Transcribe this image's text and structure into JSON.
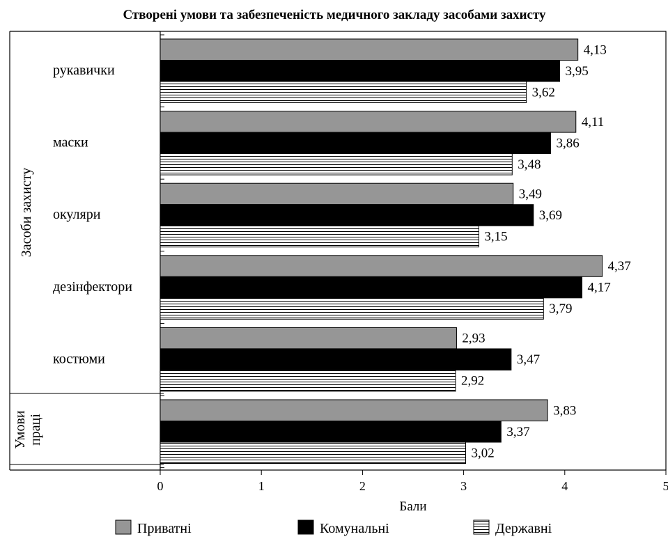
{
  "chart_data": {
    "type": "bar",
    "orientation": "horizontal",
    "title": "Створені умови та забезпеченість медичного закладу засобами захисту",
    "xlabel": "Бали",
    "xlim": [
      0,
      5
    ],
    "xticks": [
      0,
      1,
      2,
      3,
      4,
      5
    ],
    "grid": false,
    "legend_position": "bottom",
    "groups": [
      {
        "label": "Засоби захисту",
        "categories": [
          "рукавички",
          "маски",
          "окуляри",
          "дезінфектори",
          "костюми"
        ]
      },
      {
        "label": "Умови праці",
        "categories": [
          ""
        ]
      }
    ],
    "categories": [
      "рукавички",
      "маски",
      "окуляри",
      "дезінфектори",
      "костюми",
      ""
    ],
    "series": [
      {
        "name": "Приватні",
        "color": "#969696",
        "pattern": "solid",
        "values": [
          4.13,
          4.11,
          3.49,
          4.37,
          2.93,
          3.83
        ]
      },
      {
        "name": "Комунальні",
        "color": "#000000",
        "pattern": "solid",
        "values": [
          3.95,
          3.86,
          3.69,
          4.17,
          3.47,
          3.37
        ]
      },
      {
        "name": "Державні",
        "color": "#ffffff",
        "pattern": "horizontal-lines",
        "values": [
          3.62,
          3.48,
          3.15,
          3.79,
          2.92,
          3.02
        ]
      }
    ],
    "value_labels": [
      [
        "4,13",
        "4,11",
        "3,49",
        "4,37",
        "2,93",
        "3,83"
      ],
      [
        "3,95",
        "3,86",
        "3,69",
        "4,17",
        "3,47",
        "3,37"
      ],
      [
        "3,62",
        "3,48",
        "3,15",
        "3,79",
        "2,92",
        "3,02"
      ]
    ]
  }
}
